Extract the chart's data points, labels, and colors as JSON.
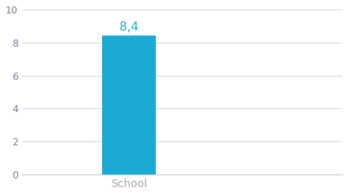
{
  "categories": [
    "School"
  ],
  "values": [
    8.4
  ],
  "bar_color": "#1aaad4",
  "label_text": "8,4",
  "label_color": "#1aaad4",
  "label_fontsize": 11,
  "ylabel_ticks": [
    0,
    2,
    4,
    6,
    8,
    10
  ],
  "ylim": [
    0,
    10
  ],
  "xlim": [
    -1.0,
    2.0
  ],
  "tick_label_color": "#7a7a9a",
  "xlabel_color": "#aaaaaa",
  "background_color": "#ffffff",
  "grid_color": "#d9d9d9",
  "bar_width": 0.5,
  "xlabel_fontsize": 10,
  "ytick_fontsize": 9
}
